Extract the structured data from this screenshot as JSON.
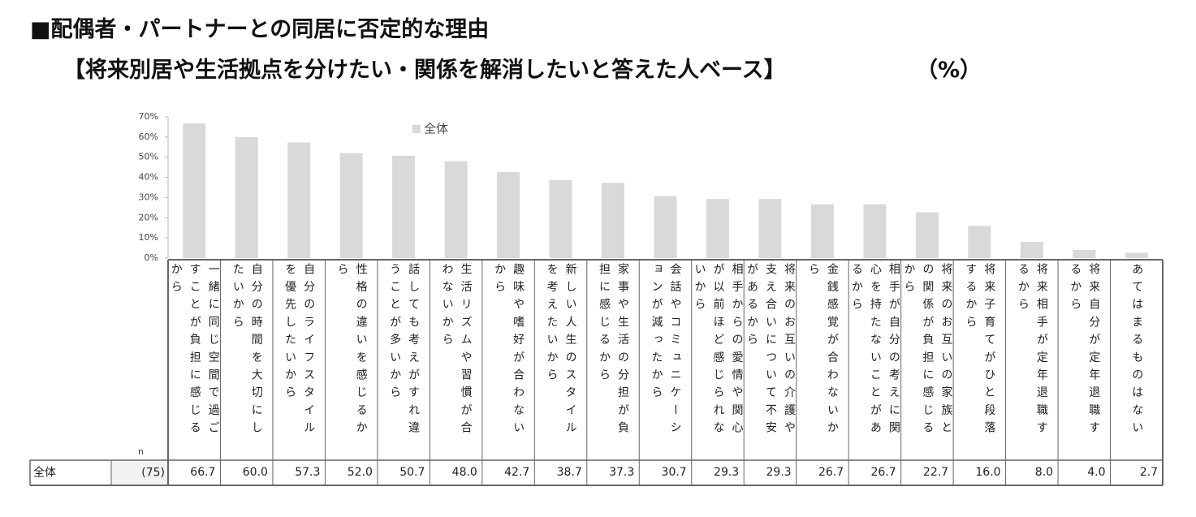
{
  "chart_data": {
    "type": "bar",
    "title": "■配偶者・パートナーとの同居に否定的な理由",
    "subtitle": "【将来別居や生活拠点を分けたい・関係を解消したいと答えた人ベース】",
    "unit": "（%）",
    "categories": [
      "一緒に同じ空間で過ごすことが負担に感じるから",
      "自分の時間を大切にしたいから",
      "自分のライフスタイルを優先したいから",
      "性格の違いを感じるから",
      "話しても考えがすれ違うことが多いから",
      "生活リズムや習慣が合わないから",
      "趣味や嗜好が合わないから",
      "新しい人生のスタイルを考えたいから",
      "家事や生活の分担が負担に感じるから",
      "会話やコミュニケーションが減ったから",
      "相手からの愛情や関心が以前ほど感じられないから",
      "将来のお互いの介護や支え合いについて不安があるから",
      "金銭感覚が合わないから",
      "相手が自分の考えに関心を持たないことがあるから",
      "将来のお互いの家族との関係が負担に感じるから",
      "将来子育てがひと段落するから",
      "将来相手が定年退職するから",
      "将来自分が定年退職するから",
      "あてはまるものはない"
    ],
    "series": [
      {
        "name": "全体",
        "color": "#d9d9d9",
        "values": [
          66.7,
          60.0,
          57.3,
          52.0,
          50.7,
          48.0,
          42.7,
          38.7,
          37.3,
          30.7,
          29.3,
          29.3,
          26.7,
          26.7,
          22.7,
          16.0,
          8.0,
          4.0,
          2.7
        ],
        "value_labels": [
          "66.7",
          "60.0",
          "57.3",
          "52.0",
          "50.7",
          "48.0",
          "42.7",
          "38.7",
          "37.3",
          "30.7",
          "29.3",
          "29.3",
          "26.7",
          "26.7",
          "22.7",
          "16.0",
          "8.0",
          "4.0",
          "2.7"
        ]
      }
    ],
    "ylim": [
      0,
      70
    ],
    "yticks": [
      {
        "value": 0,
        "label": "0%"
      },
      {
        "value": 10,
        "label": "10%"
      },
      {
        "value": 20,
        "label": "20%"
      },
      {
        "value": 30,
        "label": "30%"
      },
      {
        "value": 40,
        "label": "40%"
      },
      {
        "value": 50,
        "label": "50%"
      },
      {
        "value": 60,
        "label": "60%"
      },
      {
        "value": 70,
        "label": "70%"
      }
    ],
    "table": {
      "n_label": "n",
      "row_label": "全体",
      "n_value": "(75)"
    }
  }
}
